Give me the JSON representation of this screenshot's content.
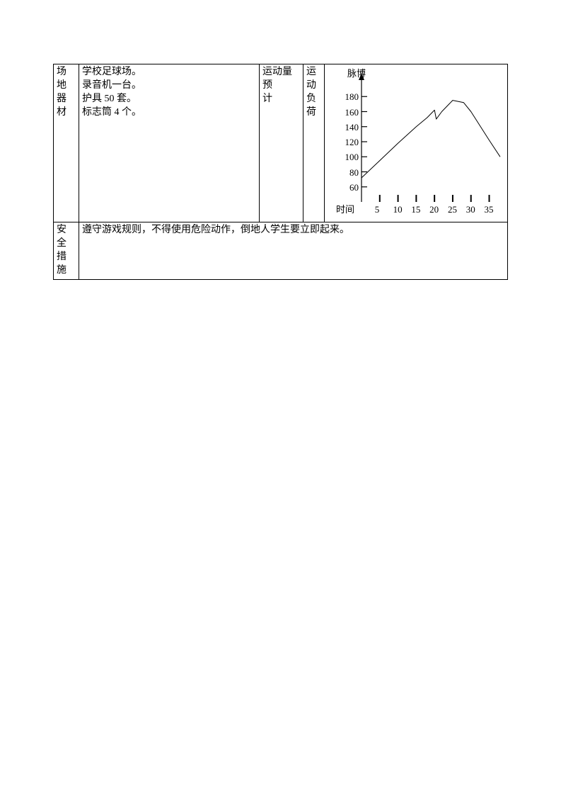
{
  "row1": {
    "header": {
      "line1": "场地",
      "line2": "器材"
    },
    "equipment": {
      "l1": "学校足球场。",
      "l2": "录音机一台。",
      "l3": "护具 50 套。",
      "l4": "标志筒 4 个。"
    },
    "col3": {
      "line1": "运动量预",
      "line2": "计"
    },
    "col4": {
      "c1": "运",
      "c2": "动",
      "c3": "负",
      "c4": "荷"
    },
    "chart": {
      "pulse_label": "脉博",
      "time_label": "时间",
      "y_ticks": [
        "180",
        "160",
        "140",
        "120",
        "100",
        "80",
        "60"
      ],
      "x_ticks": [
        "5",
        "10",
        "15",
        "20",
        "25",
        "30",
        "35"
      ],
      "curve_points": [
        {
          "t": 0,
          "v": 72
        },
        {
          "t": 5,
          "v": 95
        },
        {
          "t": 10,
          "v": 118
        },
        {
          "t": 15,
          "v": 140
        },
        {
          "t": 18,
          "v": 152
        },
        {
          "t": 20,
          "v": 162
        },
        {
          "t": 20.5,
          "v": 150
        },
        {
          "t": 22,
          "v": 160
        },
        {
          "t": 25,
          "v": 175
        },
        {
          "t": 28,
          "v": 172
        },
        {
          "t": 30,
          "v": 160
        },
        {
          "t": 35,
          "v": 122
        },
        {
          "t": 38,
          "v": 100
        }
      ],
      "y_min": 40,
      "y_max": 200,
      "x_min": 0,
      "x_max": 38,
      "stroke": "#000000",
      "axis_width": 1.2,
      "curve_width": 1.0
    }
  },
  "row2": {
    "header": {
      "line1": "安全",
      "line2": "措施"
    },
    "text": "遵守游戏规则，不得使用危险动作，倒地人学生要立即起来。"
  }
}
